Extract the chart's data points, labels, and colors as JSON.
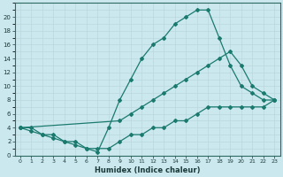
{
  "xlabel": "Humidex (Indice chaleur)",
  "bg_color": "#cce8ef",
  "grid_color": "#aacccc",
  "line_color": "#1a7a6e",
  "xlim": [
    -0.5,
    23.5
  ],
  "ylim": [
    0,
    22
  ],
  "xticks": [
    0,
    1,
    2,
    3,
    4,
    5,
    6,
    7,
    8,
    9,
    10,
    11,
    12,
    13,
    14,
    15,
    16,
    17,
    18,
    19,
    20,
    21,
    22,
    23
  ],
  "yticks": [
    0,
    2,
    4,
    6,
    8,
    10,
    12,
    14,
    16,
    18,
    20
  ],
  "line1_x": [
    0,
    1,
    2,
    3,
    4,
    5,
    6,
    7,
    8,
    9,
    10,
    11,
    12,
    13,
    14,
    15,
    16,
    17,
    18,
    19,
    20,
    21,
    22,
    23
  ],
  "line1_y": [
    4,
    3.5,
    3,
    2.5,
    2,
    1.5,
    1,
    0.5,
    4,
    8,
    11,
    14,
    16,
    17,
    19,
    20,
    21,
    21,
    17,
    13,
    10,
    9,
    8,
    8
  ],
  "line2_x": [
    0,
    9,
    10,
    11,
    12,
    13,
    14,
    15,
    16,
    17,
    18,
    19,
    20,
    21,
    22,
    23
  ],
  "line2_y": [
    4,
    5,
    6,
    7,
    8,
    9,
    10,
    11,
    12,
    13,
    14,
    15,
    13,
    10,
    9,
    8
  ],
  "line3_x": [
    0,
    1,
    2,
    3,
    4,
    5,
    6,
    7,
    8,
    9,
    10,
    11,
    12,
    13,
    14,
    15,
    16,
    17,
    18,
    19,
    20,
    21,
    22,
    23
  ],
  "line3_y": [
    4,
    4,
    3,
    3,
    2,
    2,
    1,
    1,
    1,
    2,
    3,
    3,
    4,
    4,
    5,
    5,
    6,
    7,
    7,
    7,
    7,
    7,
    7,
    8
  ]
}
